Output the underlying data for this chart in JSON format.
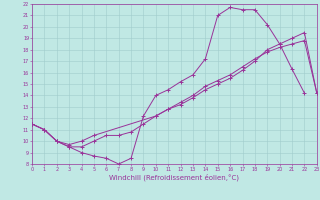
{
  "background_color": "#c0e8e4",
  "grid_color": "#a0cccc",
  "line_color": "#993399",
  "xlim": [
    0,
    23
  ],
  "ylim": [
    8,
    22
  ],
  "xtick_vals": [
    0,
    1,
    2,
    3,
    4,
    5,
    6,
    7,
    8,
    9,
    10,
    11,
    12,
    13,
    14,
    15,
    16,
    17,
    18,
    19,
    20,
    21,
    22,
    23
  ],
  "ytick_vals": [
    8,
    9,
    10,
    11,
    12,
    13,
    14,
    15,
    16,
    17,
    18,
    19,
    20,
    21,
    22
  ],
  "xlabel": "Windchill (Refroidissement éolien,°C)",
  "curve1_x": [
    0,
    1,
    2,
    3,
    4,
    5,
    6,
    7,
    8,
    9,
    10,
    11,
    12,
    13,
    14,
    15,
    16,
    17,
    18,
    19,
    20,
    21,
    22
  ],
  "curve1_y": [
    11.5,
    11.0,
    10.0,
    9.5,
    9.0,
    8.7,
    8.5,
    8.0,
    8.5,
    12.2,
    14.0,
    14.5,
    15.2,
    15.8,
    17.2,
    21.0,
    21.7,
    21.5,
    21.5,
    20.2,
    18.5,
    16.3,
    14.2
  ],
  "curve2_x": [
    0,
    1,
    2,
    3,
    4,
    5,
    6,
    7,
    8,
    9,
    10,
    11,
    12,
    13,
    14,
    15,
    16,
    17,
    18,
    19,
    20,
    21,
    22,
    23
  ],
  "curve2_y": [
    11.5,
    11.0,
    10.0,
    9.5,
    9.5,
    10.0,
    10.5,
    10.5,
    10.8,
    11.5,
    12.2,
    12.8,
    13.4,
    14.0,
    14.8,
    15.3,
    15.8,
    16.5,
    17.2,
    17.8,
    18.2,
    18.5,
    18.8,
    14.2
  ],
  "curve3_x": [
    0,
    1,
    2,
    3,
    4,
    5,
    10,
    11,
    12,
    13,
    14,
    15,
    16,
    17,
    18,
    19,
    20,
    21,
    22,
    23
  ],
  "curve3_y": [
    11.5,
    11.0,
    10.0,
    9.7,
    10.0,
    10.5,
    12.2,
    12.8,
    13.2,
    13.8,
    14.5,
    15.0,
    15.5,
    16.2,
    17.0,
    18.0,
    18.5,
    19.0,
    19.5,
    14.2
  ]
}
